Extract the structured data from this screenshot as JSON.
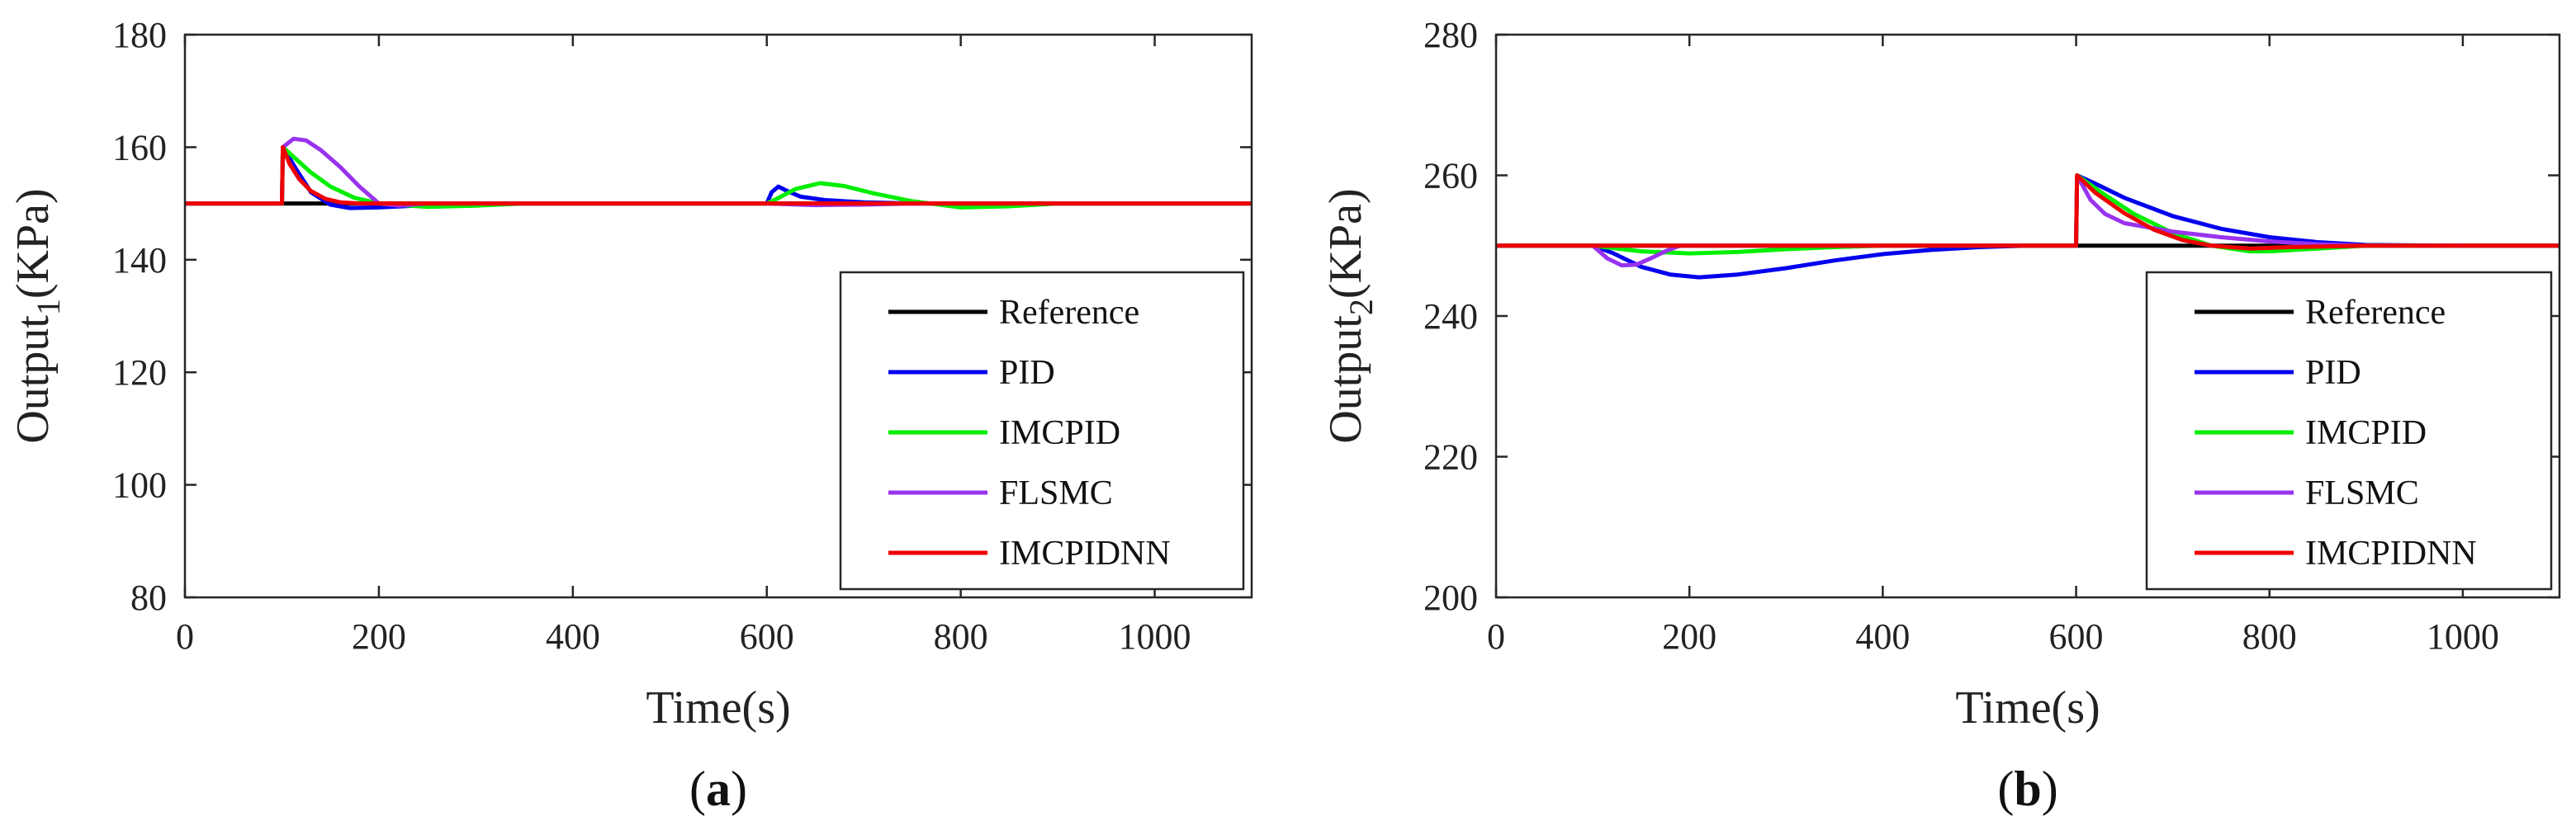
{
  "chart_data": [
    {
      "type": "line",
      "panel_label": {
        "open": "(",
        "letter": "a",
        "close": ")"
      },
      "xlabel": "Time(s)",
      "ylabel": {
        "base": "Output",
        "sub": "1",
        "unit": "(KPa)"
      },
      "xlim": [
        0,
        1100
      ],
      "ylim": [
        80,
        180
      ],
      "xticks": [
        0,
        200,
        400,
        600,
        800,
        1000
      ],
      "yticks": [
        80,
        100,
        120,
        140,
        160,
        180
      ],
      "grid": false,
      "legend_position": "bottom-right",
      "series": [
        {
          "name": "Reference",
          "color": "#000000",
          "x": [
            0,
            1100
          ],
          "y": [
            150,
            150
          ]
        },
        {
          "name": "PID",
          "color": "#0000ee",
          "x": [
            0,
            100,
            101,
            115,
            130,
            150,
            170,
            200,
            250,
            300,
            600,
            605,
            612,
            620,
            635,
            660,
            700,
            750,
            800,
            1100
          ],
          "y": [
            150,
            150,
            160,
            156,
            152,
            149.8,
            149.2,
            149.3,
            149.7,
            150,
            150,
            152,
            153,
            152.3,
            151.2,
            150.6,
            150.2,
            150,
            150,
            150
          ]
        },
        {
          "name": "IMCPID",
          "color": "#00ee00",
          "x": [
            0,
            100,
            101,
            115,
            130,
            150,
            175,
            200,
            250,
            300,
            350,
            600,
            610,
            630,
            655,
            680,
            710,
            750,
            800,
            850,
            900,
            1100
          ],
          "y": [
            150,
            150,
            160,
            157.8,
            155.5,
            153,
            151,
            150,
            149.4,
            149.6,
            150,
            150,
            150.8,
            152.6,
            153.6,
            153.1,
            151.8,
            150.4,
            149.3,
            149.5,
            150,
            150
          ]
        },
        {
          "name": "FLSMC",
          "color": "#9933ee",
          "x": [
            0,
            100,
            101,
            112,
            125,
            140,
            160,
            180,
            200,
            220,
            250,
            600,
            650,
            700,
            750,
            1100
          ],
          "y": [
            150,
            150,
            160,
            161.5,
            161.2,
            159.5,
            156.5,
            153,
            150,
            149.6,
            150,
            150,
            149.7,
            149.8,
            150,
            150
          ]
        },
        {
          "name": "IMCPIDNN",
          "color": "#ee0000",
          "x": [
            0,
            100,
            101,
            108,
            118,
            130,
            145,
            160,
            180,
            1100
          ],
          "y": [
            150,
            150,
            160,
            157,
            154.3,
            152.2,
            150.8,
            150.2,
            150,
            150
          ]
        }
      ]
    },
    {
      "type": "line",
      "panel_label": {
        "open": "(",
        "letter": "b",
        "close": ")"
      },
      "xlabel": "Time(s)",
      "ylabel": {
        "base": "Output",
        "sub": "2",
        "unit": "(KPa)"
      },
      "xlim": [
        0,
        1100
      ],
      "ylim": [
        200,
        280
      ],
      "xticks": [
        0,
        200,
        400,
        600,
        800,
        1000
      ],
      "yticks": [
        200,
        220,
        240,
        260,
        280
      ],
      "grid": false,
      "legend_position": "bottom-right",
      "series": [
        {
          "name": "Reference",
          "color": "#000000",
          "x": [
            0,
            1100
          ],
          "y": [
            250,
            250
          ]
        },
        {
          "name": "PID",
          "color": "#0000ee",
          "x": [
            0,
            100,
            120,
            150,
            180,
            210,
            250,
            300,
            350,
            400,
            450,
            500,
            550,
            600,
            601,
            620,
            650,
            700,
            750,
            800,
            850,
            900,
            1000,
            1100
          ],
          "y": [
            250,
            250,
            249,
            247,
            245.9,
            245.5,
            245.9,
            246.8,
            247.9,
            248.8,
            249.4,
            249.8,
            250,
            250,
            260,
            258.8,
            256.8,
            254.2,
            252.4,
            251.2,
            250.5,
            250.1,
            250,
            250
          ]
        },
        {
          "name": "IMCPID",
          "color": "#00ee00",
          "x": [
            0,
            100,
            150,
            200,
            250,
            300,
            350,
            400,
            600,
            601,
            630,
            660,
            700,
            740,
            780,
            800,
            850,
            900,
            1000,
            1100
          ],
          "y": [
            250,
            250,
            249.2,
            248.9,
            249.1,
            249.5,
            249.8,
            250,
            250,
            260,
            257.2,
            254.5,
            251.8,
            250,
            249.2,
            249.2,
            249.6,
            250,
            250,
            250
          ]
        },
        {
          "name": "FLSMC",
          "color": "#9933ee",
          "x": [
            0,
            100,
            115,
            130,
            145,
            160,
            175,
            190,
            600,
            601,
            615,
            630,
            650,
            700,
            750,
            800,
            850,
            900,
            1100
          ],
          "y": [
            250,
            250,
            248.2,
            247.2,
            247.3,
            248.2,
            249.2,
            250,
            250,
            260,
            256.5,
            254.5,
            253.2,
            252,
            251.2,
            250.6,
            250.2,
            250,
            250
          ]
        },
        {
          "name": "IMCPIDNN",
          "color": "#ee0000",
          "x": [
            0,
            600,
            601,
            620,
            650,
            680,
            710,
            740,
            780,
            820,
            900,
            1100
          ],
          "y": [
            250,
            250,
            260,
            257.5,
            254.6,
            252.3,
            250.8,
            250,
            249.6,
            249.8,
            250,
            250
          ]
        }
      ]
    }
  ]
}
